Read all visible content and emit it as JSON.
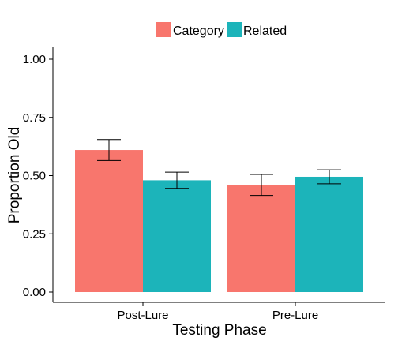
{
  "chart_data": {
    "type": "bar",
    "categories": [
      "Post-Lure",
      "Pre-Lure"
    ],
    "series": [
      {
        "name": "Category",
        "values": [
          0.61,
          0.46
        ],
        "error_low": [
          0.565,
          0.415
        ],
        "error_high": [
          0.655,
          0.505
        ],
        "color": "#F8766D"
      },
      {
        "name": "Related",
        "values": [
          0.48,
          0.495
        ],
        "error_low": [
          0.445,
          0.465
        ],
        "error_high": [
          0.515,
          0.525
        ],
        "color": "#1CB4BA"
      }
    ],
    "xlabel": "Testing Phase",
    "ylabel": "Proportion Old",
    "ylim": [
      0,
      1
    ],
    "yticks": [
      "0.00",
      "0.25",
      "0.50",
      "0.75",
      "1.00"
    ],
    "legend_position": "top",
    "grid": false
  }
}
